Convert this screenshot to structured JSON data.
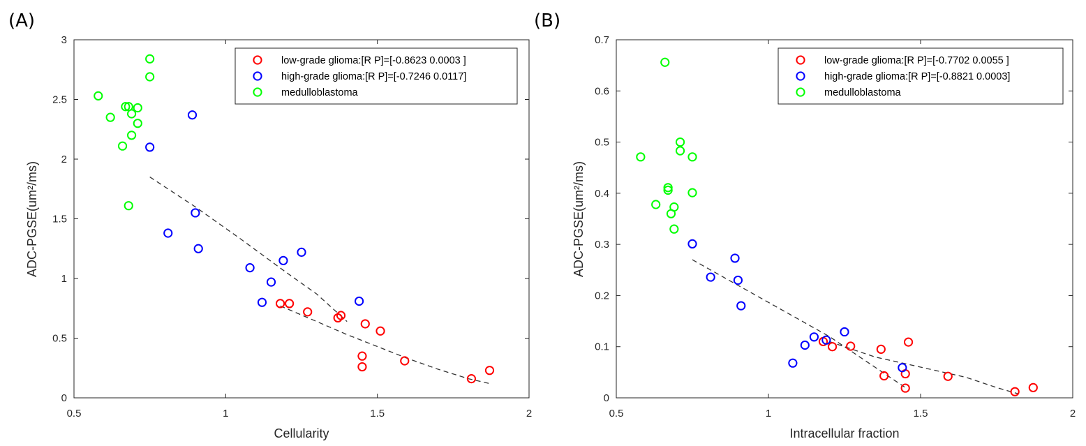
{
  "chart_data": [
    {
      "type": "scatter",
      "panel_label": "(A)",
      "title": "",
      "xlabel": "Cellularity",
      "ylabel": "ADC-PGSE(um²/ms)",
      "xlim": [
        0.5,
        2
      ],
      "ylim": [
        0,
        3
      ],
      "xticks": [
        "0.5",
        "1",
        "1.5",
        "2"
      ],
      "yticks": [
        "0",
        "0.5",
        "1",
        "1.5",
        "2",
        "2.5",
        "3"
      ],
      "legend_position": "top-right",
      "series": [
        {
          "name": "low-grade glioma:[R P]=[-0.8623 0.0003 ]",
          "color": "#ff0000",
          "points": [
            [
              1.18,
              0.79
            ],
            [
              1.21,
              0.79
            ],
            [
              1.27,
              0.72
            ],
            [
              1.37,
              0.67
            ],
            [
              1.38,
              0.69
            ],
            [
              1.46,
              0.62
            ],
            [
              1.51,
              0.56
            ],
            [
              1.45,
              0.35
            ],
            [
              1.45,
              0.26
            ],
            [
              1.59,
              0.31
            ],
            [
              1.81,
              0.16
            ],
            [
              1.87,
              0.23
            ]
          ]
        },
        {
          "name": "high-grade glioma:[R P]=[-0.7246 0.0117]",
          "color": "#0000ff",
          "points": [
            [
              0.89,
              2.37
            ],
            [
              0.75,
              2.1
            ],
            [
              0.9,
              1.55
            ],
            [
              0.81,
              1.38
            ],
            [
              0.91,
              1.25
            ],
            [
              1.25,
              1.22
            ],
            [
              1.19,
              1.15
            ],
            [
              1.08,
              1.09
            ],
            [
              1.15,
              0.97
            ],
            [
              1.12,
              0.8
            ],
            [
              1.44,
              0.81
            ]
          ]
        },
        {
          "name": "medulloblastoma",
          "color": "#00ff00",
          "points": [
            [
              0.75,
              2.84
            ],
            [
              0.75,
              2.69
            ],
            [
              0.58,
              2.53
            ],
            [
              0.67,
              2.44
            ],
            [
              0.68,
              2.44
            ],
            [
              0.71,
              2.43
            ],
            [
              0.62,
              2.35
            ],
            [
              0.69,
              2.38
            ],
            [
              0.71,
              2.3
            ],
            [
              0.69,
              2.2
            ],
            [
              0.66,
              2.11
            ],
            [
              0.68,
              1.61
            ]
          ]
        }
      ],
      "fits": [
        {
          "name": "fit-upper",
          "points": [
            [
              0.75,
              1.85
            ],
            [
              0.9,
              1.6
            ],
            [
              1.05,
              1.33
            ],
            [
              1.2,
              1.05
            ],
            [
              1.3,
              0.87
            ],
            [
              1.4,
              0.64
            ]
          ]
        },
        {
          "name": "fit-lower",
          "points": [
            [
              1.18,
              0.77
            ],
            [
              1.3,
              0.64
            ],
            [
              1.4,
              0.53
            ],
            [
              1.5,
              0.43
            ],
            [
              1.6,
              0.33
            ],
            [
              1.7,
              0.24
            ],
            [
              1.8,
              0.16
            ],
            [
              1.87,
              0.12
            ]
          ]
        }
      ]
    },
    {
      "type": "scatter",
      "panel_label": "(B)",
      "title": "",
      "xlabel": "Intracellular fraction",
      "ylabel": "ADC-PGSE(um²/ms)",
      "xlim": [
        0.5,
        2
      ],
      "ylim": [
        0,
        0.7
      ],
      "xticks": [
        "0.5",
        "1",
        "1.5",
        "2"
      ],
      "yticks": [
        "0",
        "0.1",
        "0.2",
        "0.3",
        "0.4",
        "0.5",
        "0.6",
        "0.7"
      ],
      "legend_position": "top-right",
      "series": [
        {
          "name": "low-grade glioma:[R P]=[-0.7702 0.0055 ]",
          "color": "#ff0000",
          "points": [
            [
              1.18,
              0.11
            ],
            [
              1.21,
              0.1
            ],
            [
              1.27,
              0.101
            ],
            [
              1.37,
              0.095
            ],
            [
              1.38,
              0.043
            ],
            [
              1.46,
              0.109
            ],
            [
              1.45,
              0.047
            ],
            [
              1.45,
              0.019
            ],
            [
              1.59,
              0.042
            ],
            [
              1.81,
              0.012
            ],
            [
              1.87,
              0.02
            ]
          ]
        },
        {
          "name": "high-grade glioma:[R P]=[-0.8821 0.0003]",
          "color": "#0000ff",
          "points": [
            [
              0.75,
              0.301
            ],
            [
              0.89,
              0.273
            ],
            [
              0.9,
              0.23
            ],
            [
              0.81,
              0.236
            ],
            [
              0.91,
              0.18
            ],
            [
              1.08,
              0.068
            ],
            [
              1.12,
              0.103
            ],
            [
              1.15,
              0.119
            ],
            [
              1.19,
              0.113
            ],
            [
              1.25,
              0.129
            ],
            [
              1.44,
              0.059
            ]
          ]
        },
        {
          "name": "medulloblastoma",
          "color": "#00ff00",
          "points": [
            [
              0.66,
              0.656
            ],
            [
              0.71,
              0.5
            ],
            [
              0.71,
              0.483
            ],
            [
              0.58,
              0.471
            ],
            [
              0.75,
              0.471
            ],
            [
              0.67,
              0.411
            ],
            [
              0.67,
              0.406
            ],
            [
              0.75,
              0.401
            ],
            [
              0.63,
              0.378
            ],
            [
              0.69,
              0.373
            ],
            [
              0.68,
              0.36
            ],
            [
              0.69,
              0.33
            ]
          ]
        }
      ],
      "fits": [
        {
          "name": "fit-upper",
          "points": [
            [
              0.75,
              0.27
            ],
            [
              0.9,
              0.22
            ],
            [
              1.05,
              0.17
            ],
            [
              1.2,
              0.12
            ],
            [
              1.3,
              0.08
            ],
            [
              1.45,
              0.02
            ]
          ]
        },
        {
          "name": "fit-lower",
          "points": [
            [
              1.2,
              0.11
            ],
            [
              1.35,
              0.08
            ],
            [
              1.5,
              0.06
            ],
            [
              1.65,
              0.04
            ],
            [
              1.75,
              0.02
            ],
            [
              1.82,
              0.008
            ]
          ]
        }
      ]
    }
  ]
}
